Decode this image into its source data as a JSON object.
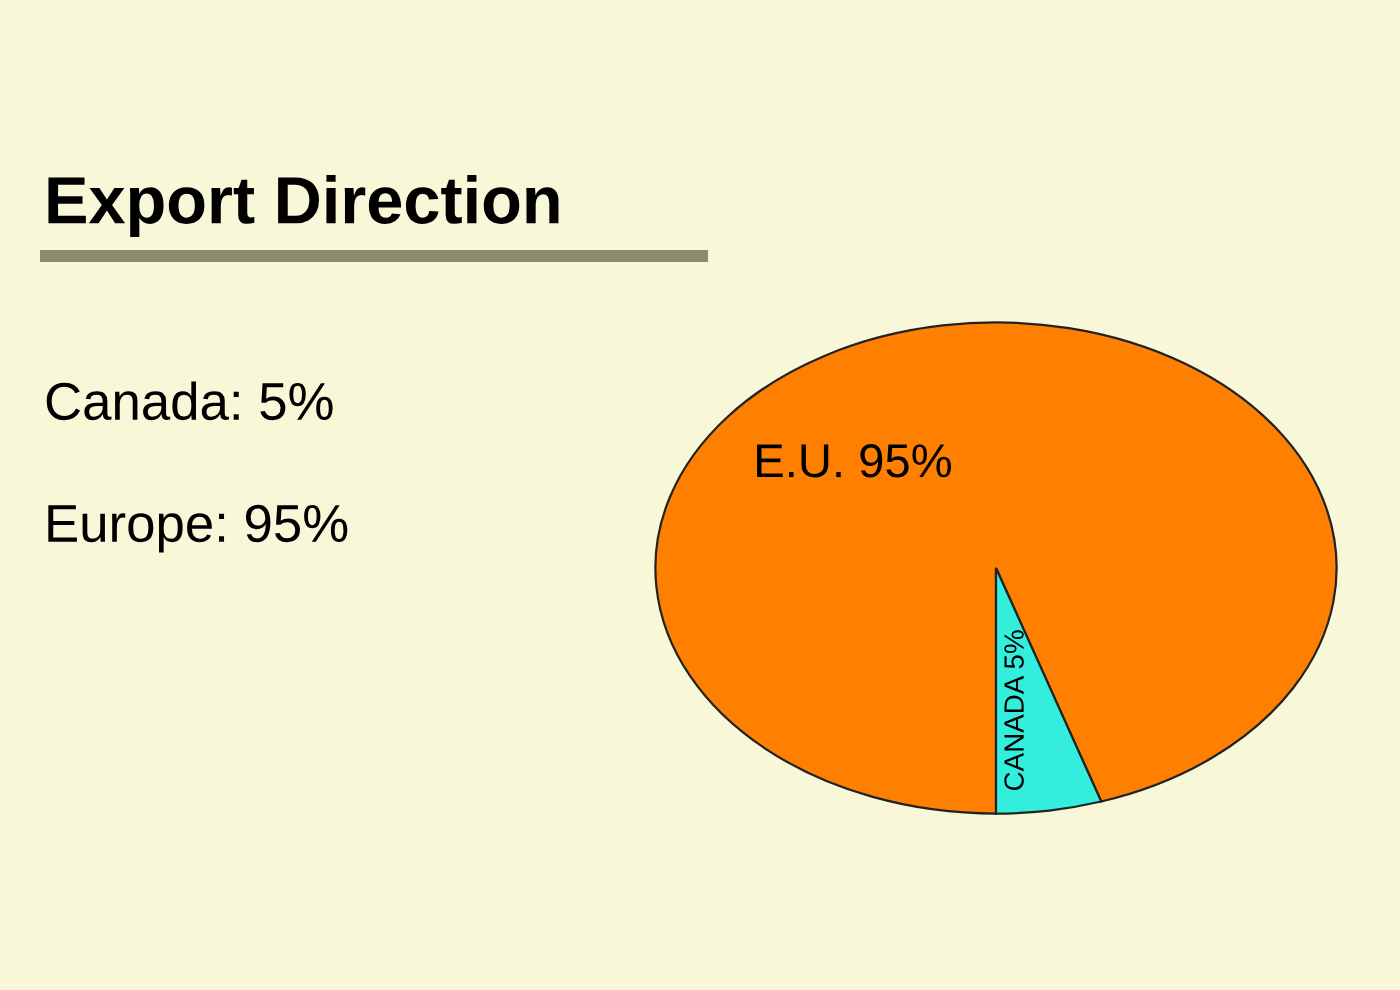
{
  "chart_data": {
    "type": "pie",
    "title": "Export Direction",
    "categories": [
      "E.U.",
      "CANADA"
    ],
    "values": [
      95,
      5
    ],
    "value_labels": [
      "95%",
      "5%"
    ],
    "colors": [
      "#ff8000",
      "#33eedd"
    ],
    "annotations": [
      "Canada: 5%",
      "Europe: 95%"
    ]
  }
}
